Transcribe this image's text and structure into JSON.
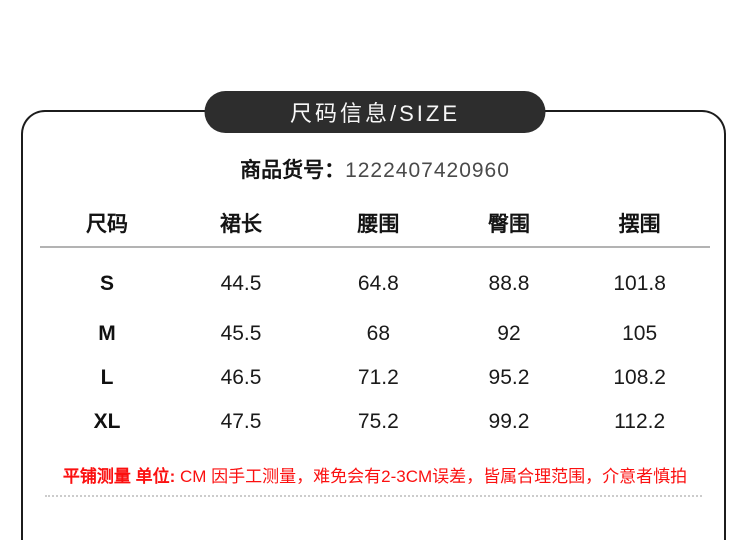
{
  "banner": {
    "label": "尺码信息/SIZE",
    "bg_color": "#2d2d2d",
    "text_color": "#f7f7f7"
  },
  "product": {
    "label": "商品货号：",
    "number": "1222407420960"
  },
  "size_table": {
    "columns": [
      "尺码",
      "裙长",
      "腰围",
      "臀围",
      "摆围"
    ],
    "rows": [
      {
        "size": "S",
        "values": [
          "44.5",
          "64.8",
          "88.8",
          "101.8"
        ]
      },
      {
        "size": "M",
        "values": [
          "45.5",
          "68",
          "92",
          "105"
        ]
      },
      {
        "size": "L",
        "values": [
          "46.5",
          "71.2",
          "95.2",
          "108.2"
        ]
      },
      {
        "size": "XL",
        "values": [
          "47.5",
          "75.2",
          "99.2",
          "112.2"
        ]
      }
    ],
    "unit": "CM"
  },
  "disclaimer": {
    "emphasis": "平铺测量 单位:",
    "text": " CM 因手工测量，难免会有2-3CM误差，皆属合理范围，介意者慎拍",
    "color": "#fb1010"
  }
}
